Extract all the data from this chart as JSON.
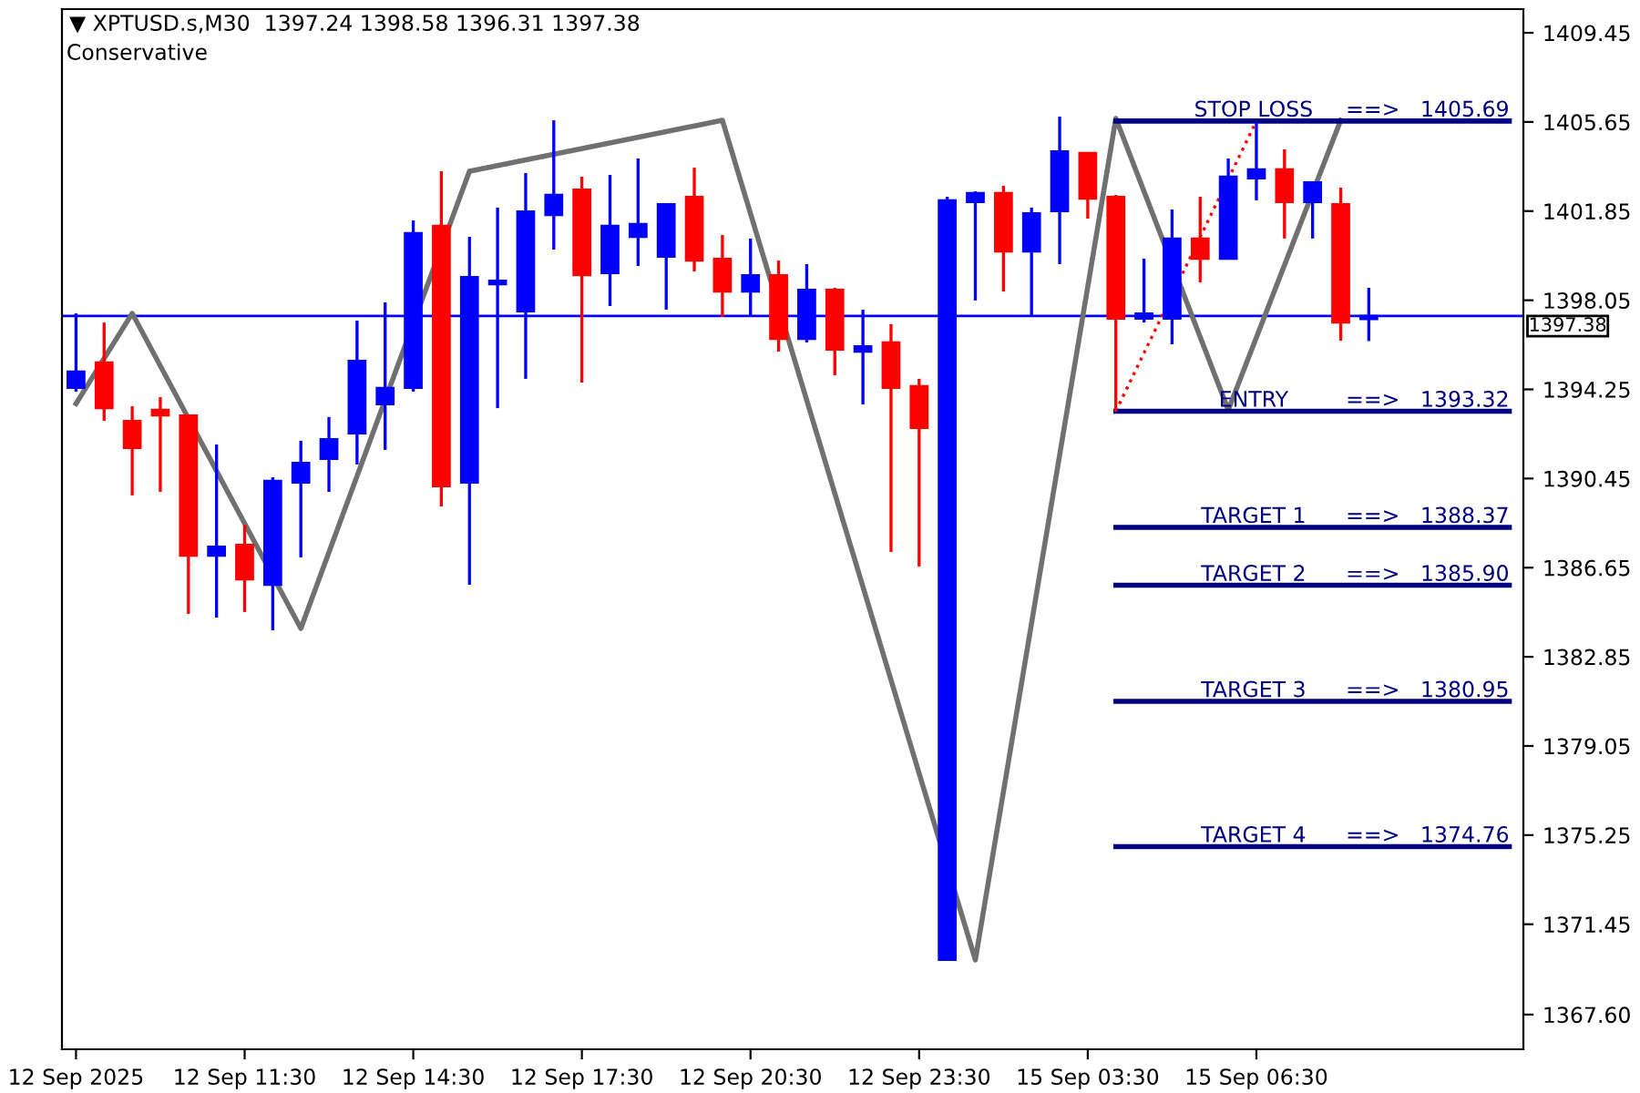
{
  "chart_data": {
    "type": "candlestick",
    "title": "▼ XPTUSD.s,M30  1397.24 1398.58 1396.31 1397.38",
    "subtitle": "Conservative",
    "categories": [
      "12 Sep 2025",
      null,
      null,
      null,
      null,
      null,
      "12 Sep 11:30",
      null,
      null,
      null,
      null,
      null,
      "12 Sep 14:30",
      null,
      null,
      null,
      null,
      null,
      "12 Sep 17:30",
      null,
      null,
      null,
      null,
      null,
      "12 Sep 20:30",
      null,
      null,
      null,
      null,
      null,
      "12 Sep 23:30",
      null,
      null,
      null,
      null,
      null,
      "15 Sep 03:30",
      null,
      null,
      null,
      null,
      null,
      "15 Sep 06:30",
      null,
      null,
      null,
      null,
      null,
      null,
      null,
      null,
      null
    ],
    "ohlc": [
      [
        1394.31,
        1397.49,
        1394.15,
        1395.01
      ],
      [
        1395.4,
        1397.1,
        1392.91,
        1393.45
      ],
      [
        1392.91,
        1393.53,
        1389.73,
        1391.75
      ],
      [
        1393.38,
        1393.92,
        1389.88,
        1393.14
      ],
      [
        1393.14,
        1393.14,
        1384.68,
        1387.16
      ],
      [
        1387.16,
        1391.9,
        1384.52,
        1387.55
      ],
      [
        1387.63,
        1388.48,
        1384.76,
        1386.15
      ],
      [
        1385.92,
        1390.5,
        1383.98,
        1390.35
      ],
      [
        1390.27,
        1392.06,
        1387.09,
        1391.12
      ],
      [
        1391.28,
        1393.07,
        1389.88,
        1392.13
      ],
      [
        1392.37,
        1397.18,
        1391.05,
        1395.47
      ],
      [
        1393.61,
        1397.96,
        1391.67,
        1394.31
      ],
      [
        1394.31,
        1401.45,
        1394.15,
        1400.91
      ],
      [
        1401.22,
        1403.55,
        1389.26,
        1390.12
      ],
      [
        1390.27,
        1400.75,
        1385.92,
        1399.04
      ],
      [
        1398.73,
        1402.0,
        1393.45,
        1398.89
      ],
      [
        1397.57,
        1403.47,
        1394.7,
        1401.84
      ],
      [
        1401.68,
        1405.72,
        1400.21,
        1402.54
      ],
      [
        1402.77,
        1403.32,
        1394.54,
        1399.12
      ],
      [
        1399.2,
        1403.39,
        1397.8,
        1401.22
      ],
      [
        1400.75,
        1404.09,
        1399.51,
        1401.3
      ],
      [
        1399.9,
        1402.15,
        1397.65,
        1402.15
      ],
      [
        1402.46,
        1403.7,
        1399.28,
        1399.74
      ],
      [
        1399.82,
        1400.83,
        1397.34,
        1398.42
      ],
      [
        1398.42,
        1400.68,
        1397.41,
        1399.12
      ],
      [
        1399.12,
        1399.74,
        1395.86,
        1396.4
      ],
      [
        1396.4,
        1399.59,
        1396.25,
        1398.5
      ],
      [
        1398.5,
        1398.58,
        1394.85,
        1395.94
      ],
      [
        1395.86,
        1397.65,
        1393.61,
        1396.09
      ],
      [
        1396.25,
        1397.03,
        1387.32,
        1394.31
      ],
      [
        1394.39,
        1394.7,
        1386.7,
        1392.6
      ],
      [
        1369.93,
        1402.46,
        1369.93,
        1402.31
      ],
      [
        1402.23,
        1402.69,
        1398.04,
        1402.62
      ],
      [
        1402.62,
        1402.93,
        1398.42,
        1400.13
      ],
      [
        1400.13,
        1402.0,
        1397.41,
        1401.76
      ],
      [
        1401.84,
        1405.88,
        1399.59,
        1404.4
      ],
      [
        1404.33,
        1404.33,
        1401.53,
        1402.38
      ],
      [
        1402.46,
        1402.54,
        1393.3,
        1397.26
      ],
      [
        1397.26,
        1399.82,
        1397.1,
        1397.49
      ],
      [
        1397.26,
        1401.92,
        1396.17,
        1400.68
      ],
      [
        1400.68,
        1402.46,
        1398.81,
        1399.82
      ],
      [
        1399.82,
        1404.09,
        1399.82,
        1403.32
      ],
      [
        1403.24,
        1405.65,
        1402.31,
        1403.63
      ],
      [
        1403.63,
        1404.48,
        1400.68,
        1402.23
      ],
      [
        1402.23,
        1403.08,
        1400.68,
        1403.08
      ],
      [
        1402.15,
        1402.85,
        1396.33,
        1397.1
      ],
      [
        1397.24,
        1398.58,
        1396.31,
        1397.38
      ],
      null,
      null,
      null,
      null,
      null
    ],
    "colors": [
      "#0000ff",
      "#ff0000",
      "#ff0000",
      "#ff0000",
      "#ff0000",
      "#0000ff",
      "#ff0000",
      "#0000ff",
      "#0000ff",
      "#0000ff",
      "#0000ff",
      "#0000ff",
      "#0000ff",
      "#ff0000",
      "#0000ff",
      "#0000ff",
      "#0000ff",
      "#0000ff",
      "#ff0000",
      "#0000ff",
      "#0000ff",
      "#0000ff",
      "#ff0000",
      "#ff0000",
      "#0000ff",
      "#ff0000",
      "#0000ff",
      "#ff0000",
      "#0000ff",
      "#ff0000",
      "#ff0000",
      "#0000ff",
      "#0000ff",
      "#ff0000",
      "#0000ff",
      "#0000ff",
      "#ff0000",
      "#ff0000",
      "#0000ff",
      "#0000ff",
      "#ff0000",
      "#0000ff",
      "#0000ff",
      "#ff0000",
      "#0000ff",
      "#ff0000",
      "#0000ff",
      null,
      null,
      null,
      null,
      null
    ],
    "series": [
      {
        "type": "line",
        "color": "#707070",
        "values": [
          1393.64,
          null,
          1397.49,
          null,
          null,
          null,
          null,
          null,
          1384.06,
          null,
          null,
          null,
          null,
          null,
          1403.55,
          null,
          null,
          null,
          null,
          null,
          null,
          null,
          null,
          1405.72,
          null,
          null,
          null,
          null,
          null,
          null,
          null,
          null,
          1369.93,
          null,
          null,
          null,
          null,
          1405.8,
          null,
          null,
          null,
          1393.38,
          null,
          null,
          null,
          1405.72,
          null,
          null,
          null,
          null,
          null,
          null
        ]
      },
      {
        "type": "line",
        "color": "#ff0000",
        "line_style": "dotted",
        "values": [
          null,
          null,
          null,
          null,
          null,
          null,
          null,
          null,
          null,
          null,
          null,
          null,
          null,
          null,
          null,
          null,
          null,
          null,
          null,
          null,
          null,
          null,
          null,
          null,
          null,
          null,
          null,
          null,
          null,
          null,
          null,
          null,
          null,
          null,
          null,
          null,
          null,
          1393.32,
          null,
          null,
          null,
          null,
          1405.69,
          null,
          null,
          null,
          null,
          null,
          null,
          null,
          null,
          null
        ]
      },
      {
        "type": "line",
        "name": "STOP LOSS",
        "color": "#000080",
        "values": [
          null,
          null,
          null,
          null,
          null,
          null,
          null,
          null,
          null,
          null,
          null,
          null,
          null,
          null,
          null,
          null,
          null,
          null,
          null,
          null,
          null,
          null,
          null,
          null,
          null,
          null,
          null,
          null,
          null,
          null,
          null,
          null,
          null,
          null,
          null,
          null,
          null,
          1405.69,
          null,
          null,
          null,
          null,
          null,
          null,
          null,
          null,
          null,
          null,
          null,
          null,
          null,
          1405.69
        ],
        "value_labels": [
          null,
          null,
          null,
          null,
          null,
          null,
          null,
          null,
          null,
          null,
          null,
          null,
          null,
          null,
          null,
          null,
          null,
          null,
          null,
          null,
          null,
          null,
          null,
          null,
          null,
          null,
          null,
          null,
          null,
          null,
          null,
          null,
          null,
          null,
          null,
          null,
          null,
          null,
          null,
          null,
          null,
          null,
          null,
          null,
          null,
          null,
          null,
          null,
          null,
          null,
          null,
          "==>   1405.69"
        ]
      },
      {
        "type": "line",
        "name": "ENTRY",
        "color": "#000080",
        "values": [
          null,
          null,
          null,
          null,
          null,
          null,
          null,
          null,
          null,
          null,
          null,
          null,
          null,
          null,
          null,
          null,
          null,
          null,
          null,
          null,
          null,
          null,
          null,
          null,
          null,
          null,
          null,
          null,
          null,
          null,
          null,
          null,
          null,
          null,
          null,
          null,
          null,
          1393.32,
          null,
          null,
          null,
          null,
          null,
          null,
          null,
          null,
          null,
          null,
          null,
          null,
          null,
          1393.32
        ],
        "value_labels": [
          null,
          null,
          null,
          null,
          null,
          null,
          null,
          null,
          null,
          null,
          null,
          null,
          null,
          null,
          null,
          null,
          null,
          null,
          null,
          null,
          null,
          null,
          null,
          null,
          null,
          null,
          null,
          null,
          null,
          null,
          null,
          null,
          null,
          null,
          null,
          null,
          null,
          null,
          null,
          null,
          null,
          null,
          null,
          null,
          null,
          null,
          null,
          null,
          null,
          null,
          null,
          "==>   1393.32"
        ]
      },
      {
        "type": "line",
        "name": "TARGET 1",
        "color": "#000080",
        "values": [
          null,
          null,
          null,
          null,
          null,
          null,
          null,
          null,
          null,
          null,
          null,
          null,
          null,
          null,
          null,
          null,
          null,
          null,
          null,
          null,
          null,
          null,
          null,
          null,
          null,
          null,
          null,
          null,
          null,
          null,
          null,
          null,
          null,
          null,
          null,
          null,
          null,
          1388.37,
          null,
          null,
          null,
          null,
          null,
          null,
          null,
          null,
          null,
          null,
          null,
          null,
          null,
          1388.37
        ],
        "value_labels": [
          null,
          null,
          null,
          null,
          null,
          null,
          null,
          null,
          null,
          null,
          null,
          null,
          null,
          null,
          null,
          null,
          null,
          null,
          null,
          null,
          null,
          null,
          null,
          null,
          null,
          null,
          null,
          null,
          null,
          null,
          null,
          null,
          null,
          null,
          null,
          null,
          null,
          null,
          null,
          null,
          null,
          null,
          null,
          null,
          null,
          null,
          null,
          null,
          null,
          null,
          null,
          "==>   1388.37"
        ]
      },
      {
        "type": "line",
        "name": "TARGET 2",
        "color": "#000080",
        "values": [
          null,
          null,
          null,
          null,
          null,
          null,
          null,
          null,
          null,
          null,
          null,
          null,
          null,
          null,
          null,
          null,
          null,
          null,
          null,
          null,
          null,
          null,
          null,
          null,
          null,
          null,
          null,
          null,
          null,
          null,
          null,
          null,
          null,
          null,
          null,
          null,
          null,
          1385.9,
          null,
          null,
          null,
          null,
          null,
          null,
          null,
          null,
          null,
          null,
          null,
          null,
          null,
          1385.9
        ],
        "value_labels": [
          null,
          null,
          null,
          null,
          null,
          null,
          null,
          null,
          null,
          null,
          null,
          null,
          null,
          null,
          null,
          null,
          null,
          null,
          null,
          null,
          null,
          null,
          null,
          null,
          null,
          null,
          null,
          null,
          null,
          null,
          null,
          null,
          null,
          null,
          null,
          null,
          null,
          null,
          null,
          null,
          null,
          null,
          null,
          null,
          null,
          null,
          null,
          null,
          null,
          null,
          null,
          "==>   1385.90"
        ]
      },
      {
        "type": "line",
        "name": "TARGET 3",
        "color": "#000080",
        "values": [
          null,
          null,
          null,
          null,
          null,
          null,
          null,
          null,
          null,
          null,
          null,
          null,
          null,
          null,
          null,
          null,
          null,
          null,
          null,
          null,
          null,
          null,
          null,
          null,
          null,
          null,
          null,
          null,
          null,
          null,
          null,
          null,
          null,
          null,
          null,
          null,
          null,
          1380.95,
          null,
          null,
          null,
          null,
          null,
          null,
          null,
          null,
          null,
          null,
          null,
          null,
          null,
          1380.95
        ],
        "value_labels": [
          null,
          null,
          null,
          null,
          null,
          null,
          null,
          null,
          null,
          null,
          null,
          null,
          null,
          null,
          null,
          null,
          null,
          null,
          null,
          null,
          null,
          null,
          null,
          null,
          null,
          null,
          null,
          null,
          null,
          null,
          null,
          null,
          null,
          null,
          null,
          null,
          null,
          null,
          null,
          null,
          null,
          null,
          null,
          null,
          null,
          null,
          null,
          null,
          null,
          null,
          null,
          "==>   1380.95"
        ]
      },
      {
        "type": "line",
        "name": "TARGET 4",
        "color": "#000080",
        "values": [
          null,
          null,
          null,
          null,
          null,
          null,
          null,
          null,
          null,
          null,
          null,
          null,
          null,
          null,
          null,
          null,
          null,
          null,
          null,
          null,
          null,
          null,
          null,
          null,
          null,
          null,
          null,
          null,
          null,
          null,
          null,
          null,
          null,
          null,
          null,
          null,
          null,
          1374.76,
          null,
          null,
          null,
          null,
          null,
          null,
          null,
          null,
          null,
          null,
          null,
          null,
          null,
          1374.76
        ],
        "value_labels": [
          null,
          null,
          null,
          null,
          null,
          null,
          null,
          null,
          null,
          null,
          null,
          null,
          null,
          null,
          null,
          null,
          null,
          null,
          null,
          null,
          null,
          null,
          null,
          null,
          null,
          null,
          null,
          null,
          null,
          null,
          null,
          null,
          null,
          null,
          null,
          null,
          null,
          null,
          null,
          null,
          null,
          null,
          null,
          null,
          null,
          null,
          null,
          null,
          null,
          null,
          null,
          "==>   1374.76"
        ]
      }
    ],
    "ref_lines": [
      {
        "axis": "y",
        "value": 1397.38,
        "label": "1397.38",
        "color": "#0000ff"
      }
    ],
    "ylim": [
      1366.12,
      1410.46
    ],
    "yticks": [
      1409.45,
      1405.65,
      1401.85,
      1398.05,
      1394.25,
      1390.45,
      1386.65,
      1382.85,
      1379.05,
      1375.25,
      1371.45,
      {
        "value": 1367.6,
        "label": "1367.60"
      }
    ],
    "grid": false,
    "legend": false
  }
}
